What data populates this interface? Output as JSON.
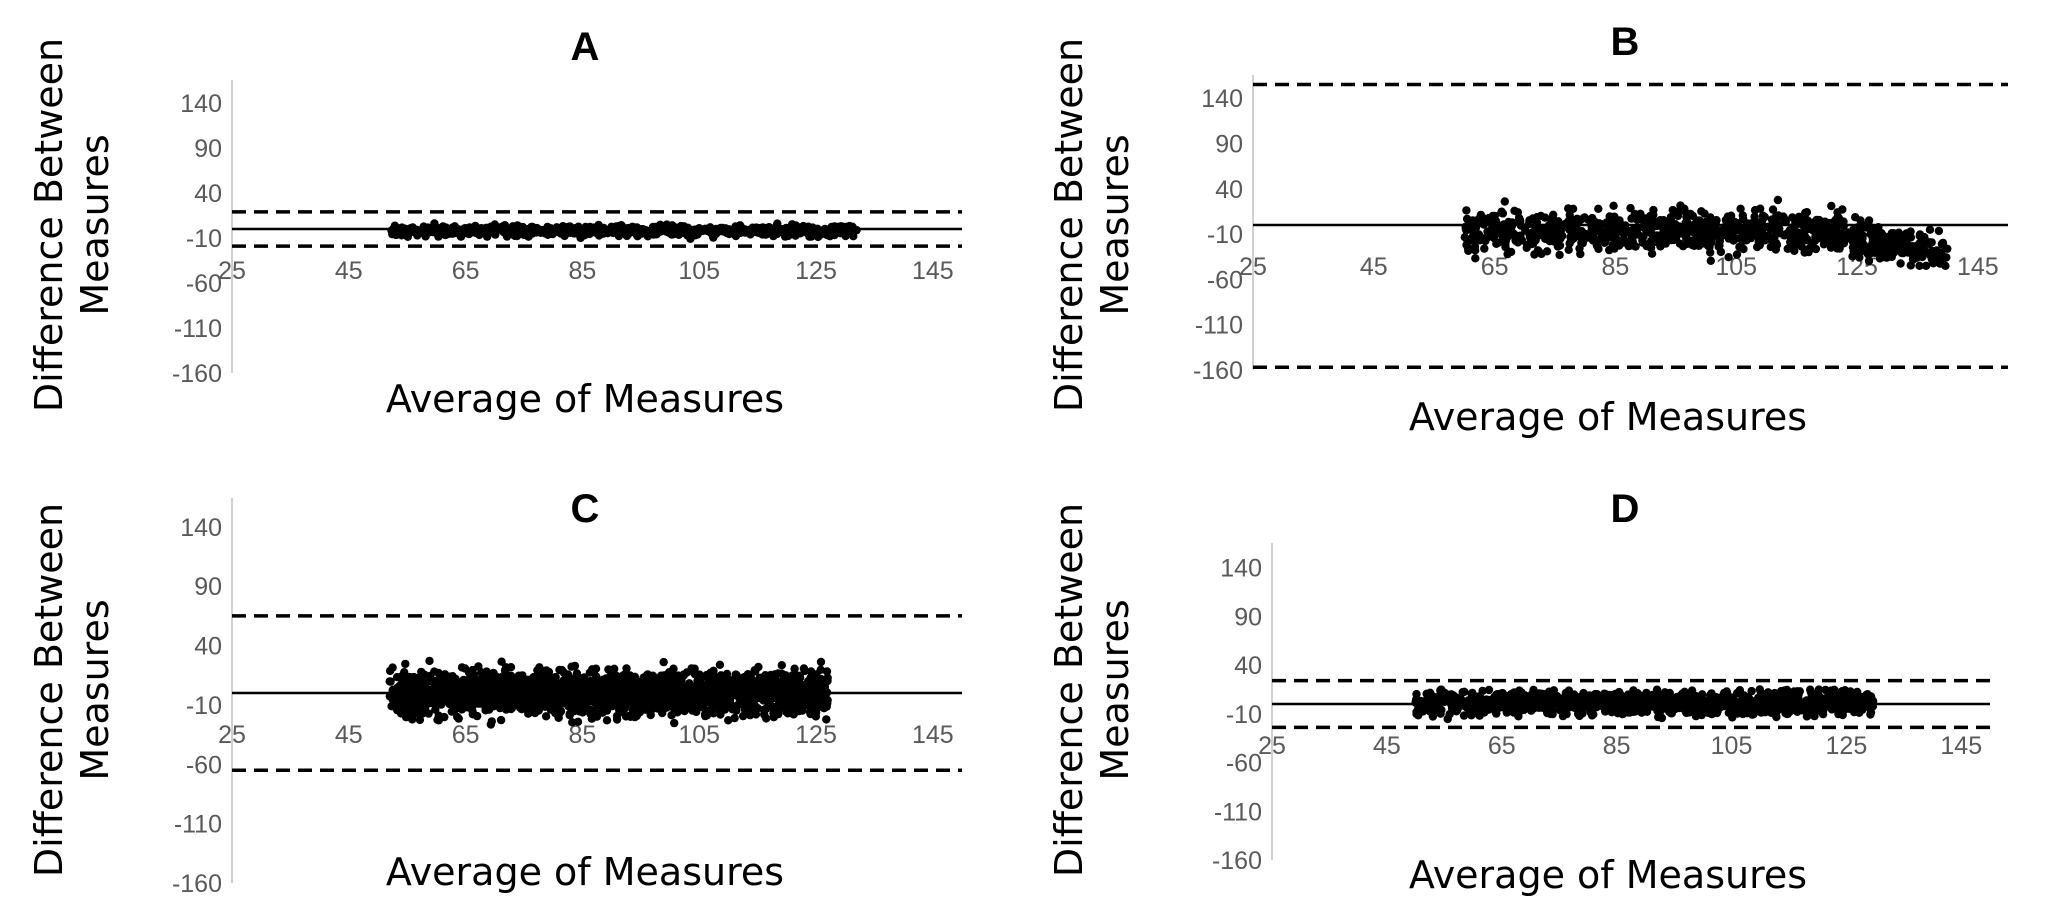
{
  "chart_data": [
    {
      "type": "scatter",
      "title": "A",
      "xlabel": "Average of Measures",
      "ylabel_lines": [
        "Difference Between",
        "Measures"
      ],
      "xlim": [
        25,
        150
      ],
      "ylim": [
        -160,
        160
      ],
      "xticks": [
        25,
        45,
        65,
        85,
        105,
        125,
        145
      ],
      "yticks": [
        140,
        90,
        40,
        -10,
        -60,
        -110,
        -160
      ],
      "mean_line": 0,
      "limits_of_agreement": [
        19,
        -19
      ],
      "cloud": {
        "x_range": [
          52,
          132
        ],
        "diff_range": [
          -12,
          8
        ],
        "n": 700
      }
    },
    {
      "type": "scatter",
      "title": "B",
      "xlabel": "Average of Measures",
      "ylabel_lines": [
        "Difference Between",
        "Measures"
      ],
      "xlim": [
        25,
        150
      ],
      "ylim": [
        -160,
        160
      ],
      "xticks": [
        25,
        45,
        65,
        85,
        105,
        125,
        145
      ],
      "yticks": [
        140,
        90,
        40,
        -10,
        -60,
        -110,
        -160
      ],
      "mean_line": 0,
      "limits_of_agreement": [
        155,
        -157
      ],
      "cloud": {
        "x_range": [
          60,
          140
        ],
        "diff_range": [
          -45,
          32
        ],
        "n": 900
      }
    },
    {
      "type": "scatter",
      "title": "C",
      "xlabel": "Average of Measures",
      "ylabel_lines": [
        "Difference Between",
        "Measures"
      ],
      "xlim": [
        25,
        150
      ],
      "ylim": [
        -160,
        160
      ],
      "xticks": [
        25,
        45,
        65,
        85,
        105,
        125,
        145
      ],
      "yticks": [
        140,
        90,
        40,
        -10,
        -60,
        -110,
        -160
      ],
      "mean_line": 0,
      "limits_of_agreement": [
        65,
        -65
      ],
      "cloud": {
        "x_range": [
          52,
          127
        ],
        "diff_range": [
          -32,
          32
        ],
        "n": 1800
      }
    },
    {
      "type": "scatter",
      "title": "D",
      "xlabel": "Average of Measures",
      "ylabel_lines": [
        "Difference Between",
        "Measures"
      ],
      "xlim": [
        25,
        150
      ],
      "ylim": [
        -160,
        160
      ],
      "xticks": [
        25,
        45,
        65,
        85,
        105,
        125,
        145
      ],
      "yticks": [
        140,
        90,
        40,
        -10,
        -60,
        -110,
        -160
      ],
      "mean_line": 0,
      "limits_of_agreement": [
        24,
        -24
      ],
      "cloud": {
        "x_range": [
          50,
          130
        ],
        "diff_range": [
          -20,
          22
        ],
        "n": 1100
      }
    }
  ]
}
